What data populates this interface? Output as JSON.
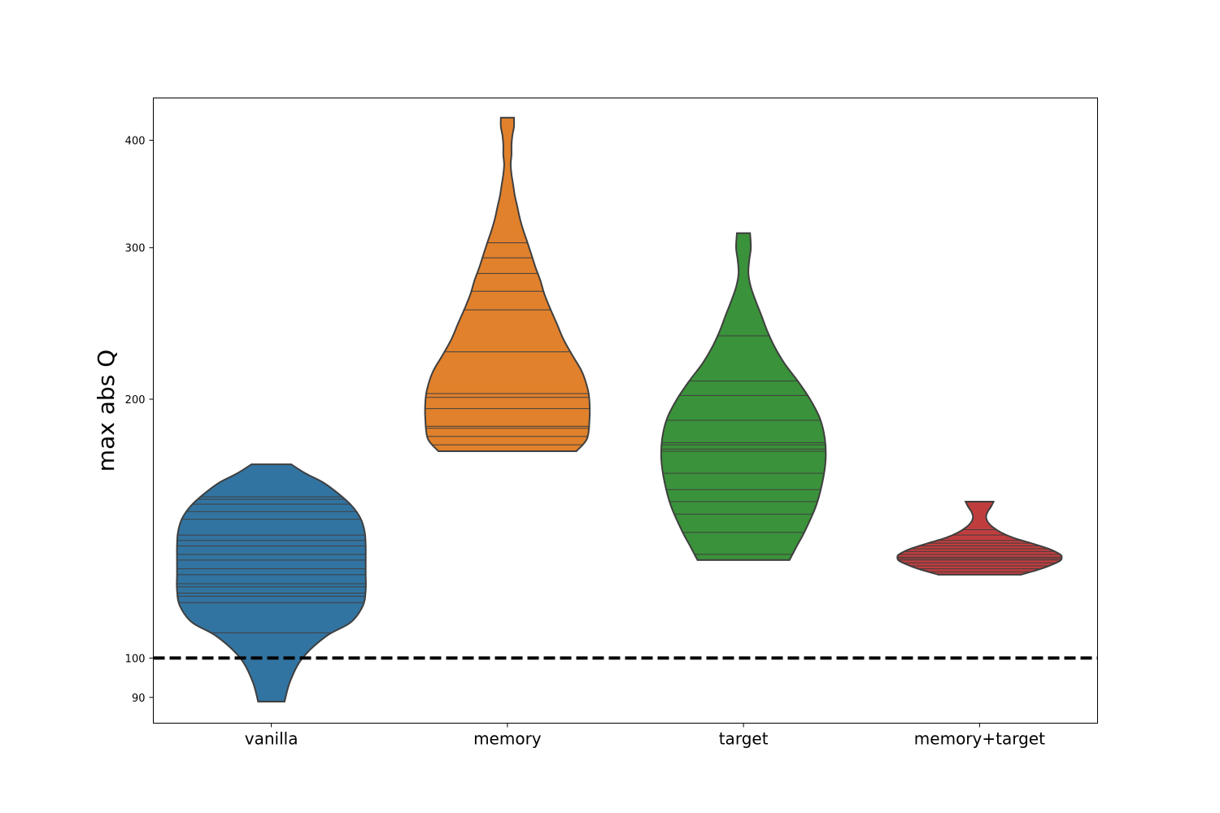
{
  "chart_data": {
    "type": "violin",
    "title": "",
    "xlabel": "",
    "ylabel": "max abs Q",
    "yscale": "log",
    "ylim": [
      84,
      448
    ],
    "yticks": [
      90,
      100,
      200,
      300,
      400
    ],
    "categories": [
      "vanilla",
      "memory",
      "target",
      "memory+target"
    ],
    "reference_line": {
      "value": 100,
      "style": "dashed",
      "color": "#000000"
    },
    "series": [
      {
        "category": "vanilla",
        "color": "#3274a1",
        "min": 89,
        "max": 168,
        "density": [
          [
            89,
            0.14
          ],
          [
            94,
            0.2
          ],
          [
            100,
            0.33
          ],
          [
            106,
            0.58
          ],
          [
            110,
            0.84
          ],
          [
            115,
            0.97
          ],
          [
            120,
            1.0
          ],
          [
            125,
            1.0
          ],
          [
            130,
            1.0
          ],
          [
            135,
            1.0
          ],
          [
            140,
            0.99
          ],
          [
            145,
            0.95
          ],
          [
            150,
            0.86
          ],
          [
            155,
            0.72
          ],
          [
            160,
            0.55
          ],
          [
            164,
            0.36
          ],
          [
            168,
            0.21
          ]
        ],
        "observations": [
          107,
          116,
          118,
          119,
          121,
          122,
          125,
          127,
          130,
          132,
          135,
          137,
          139,
          145,
          148,
          151,
          153,
          154
        ]
      },
      {
        "category": "memory",
        "color": "#e1812c",
        "min": 174,
        "max": 425,
        "density": [
          [
            174,
            0.84
          ],
          [
            180,
            0.97
          ],
          [
            190,
            1.0
          ],
          [
            198,
            1.0
          ],
          [
            205,
            0.98
          ],
          [
            215,
            0.91
          ],
          [
            225,
            0.79
          ],
          [
            235,
            0.68
          ],
          [
            245,
            0.6
          ],
          [
            255,
            0.52
          ],
          [
            265,
            0.45
          ],
          [
            275,
            0.4
          ],
          [
            285,
            0.34
          ],
          [
            295,
            0.29
          ],
          [
            305,
            0.24
          ],
          [
            315,
            0.19
          ],
          [
            325,
            0.15
          ],
          [
            335,
            0.12
          ],
          [
            345,
            0.09
          ],
          [
            355,
            0.07
          ],
          [
            365,
            0.05
          ],
          [
            375,
            0.04
          ],
          [
            385,
            0.05
          ],
          [
            395,
            0.05
          ],
          [
            405,
            0.06
          ],
          [
            415,
            0.08
          ],
          [
            425,
            0.08
          ]
        ],
        "observations": [
          177,
          181,
          185,
          186,
          195,
          201,
          203,
          227,
          254,
          267,
          280,
          292,
          304
        ]
      },
      {
        "category": "target",
        "color": "#3a923a",
        "min": 130,
        "max": 312,
        "density": [
          [
            130,
            0.56
          ],
          [
            135,
            0.65
          ],
          [
            140,
            0.74
          ],
          [
            150,
            0.88
          ],
          [
            160,
            0.96
          ],
          [
            170,
            1.0
          ],
          [
            180,
            0.99
          ],
          [
            190,
            0.93
          ],
          [
            200,
            0.81
          ],
          [
            210,
            0.66
          ],
          [
            220,
            0.5
          ],
          [
            230,
            0.38
          ],
          [
            240,
            0.29
          ],
          [
            250,
            0.22
          ],
          [
            260,
            0.15
          ],
          [
            270,
            0.09
          ],
          [
            280,
            0.06
          ],
          [
            290,
            0.07
          ],
          [
            300,
            0.09
          ],
          [
            312,
            0.08
          ]
        ],
        "observations": [
          132,
          140,
          147,
          152,
          157,
          164,
          174,
          175,
          177,
          178,
          189,
          202,
          210,
          237
        ]
      },
      {
        "category": "memory+target",
        "color": "#c03d3e",
        "min": 125,
        "max": 152,
        "density": [
          [
            125,
            0.5
          ],
          [
            127,
            0.75
          ],
          [
            129,
            0.93
          ],
          [
            130,
            0.99
          ],
          [
            131,
            1.0
          ],
          [
            132,
            0.98
          ],
          [
            134,
            0.84
          ],
          [
            136,
            0.63
          ],
          [
            138,
            0.41
          ],
          [
            140,
            0.26
          ],
          [
            142,
            0.16
          ],
          [
            144,
            0.1
          ],
          [
            146,
            0.08
          ],
          [
            148,
            0.1
          ],
          [
            150,
            0.14
          ],
          [
            152,
            0.17
          ]
        ],
        "observations": [
          126,
          127,
          128,
          129,
          130,
          130.5,
          131,
          132,
          133,
          134,
          135,
          136,
          137,
          139,
          141
        ]
      }
    ]
  }
}
